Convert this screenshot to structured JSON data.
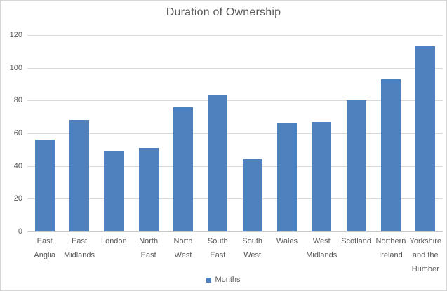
{
  "chart_data": {
    "type": "bar",
    "title": "Duration of Ownership",
    "xlabel": "",
    "ylabel": "",
    "categories": [
      "East Anglia",
      "East Midlands",
      "London",
      "North East",
      "North West",
      "South East",
      "South West",
      "Wales",
      "West Midlands",
      "Scotland",
      "Northern Ireland",
      "Yorkshire and the Humber"
    ],
    "category_lines": [
      [
        "East",
        "Anglia"
      ],
      [
        "East",
        "Midlands"
      ],
      [
        "London"
      ],
      [
        "North",
        "East"
      ],
      [
        "North",
        "West"
      ],
      [
        "South",
        "East"
      ],
      [
        "South",
        "West"
      ],
      [
        "Wales"
      ],
      [
        "West",
        "Midlands"
      ],
      [
        "Scotland"
      ],
      [
        "Northern",
        "Ireland"
      ],
      [
        "Yorkshire",
        "and the",
        "Humber"
      ]
    ],
    "series": [
      {
        "name": "Months",
        "values": [
          56,
          68,
          49,
          51,
          76,
          83,
          44,
          66,
          67,
          80,
          93,
          113
        ]
      }
    ],
    "ylim": [
      0,
      120
    ],
    "yticks": [
      0,
      20,
      40,
      60,
      80,
      100,
      120
    ],
    "grid": true,
    "legend_position": "bottom",
    "colors": {
      "bar": "#4e81bd",
      "gridline": "#d9d9d9",
      "axis_line": "#c9c9c9",
      "text": "#595959",
      "border": "#d6d6d6",
      "background": "#ffffff"
    }
  }
}
